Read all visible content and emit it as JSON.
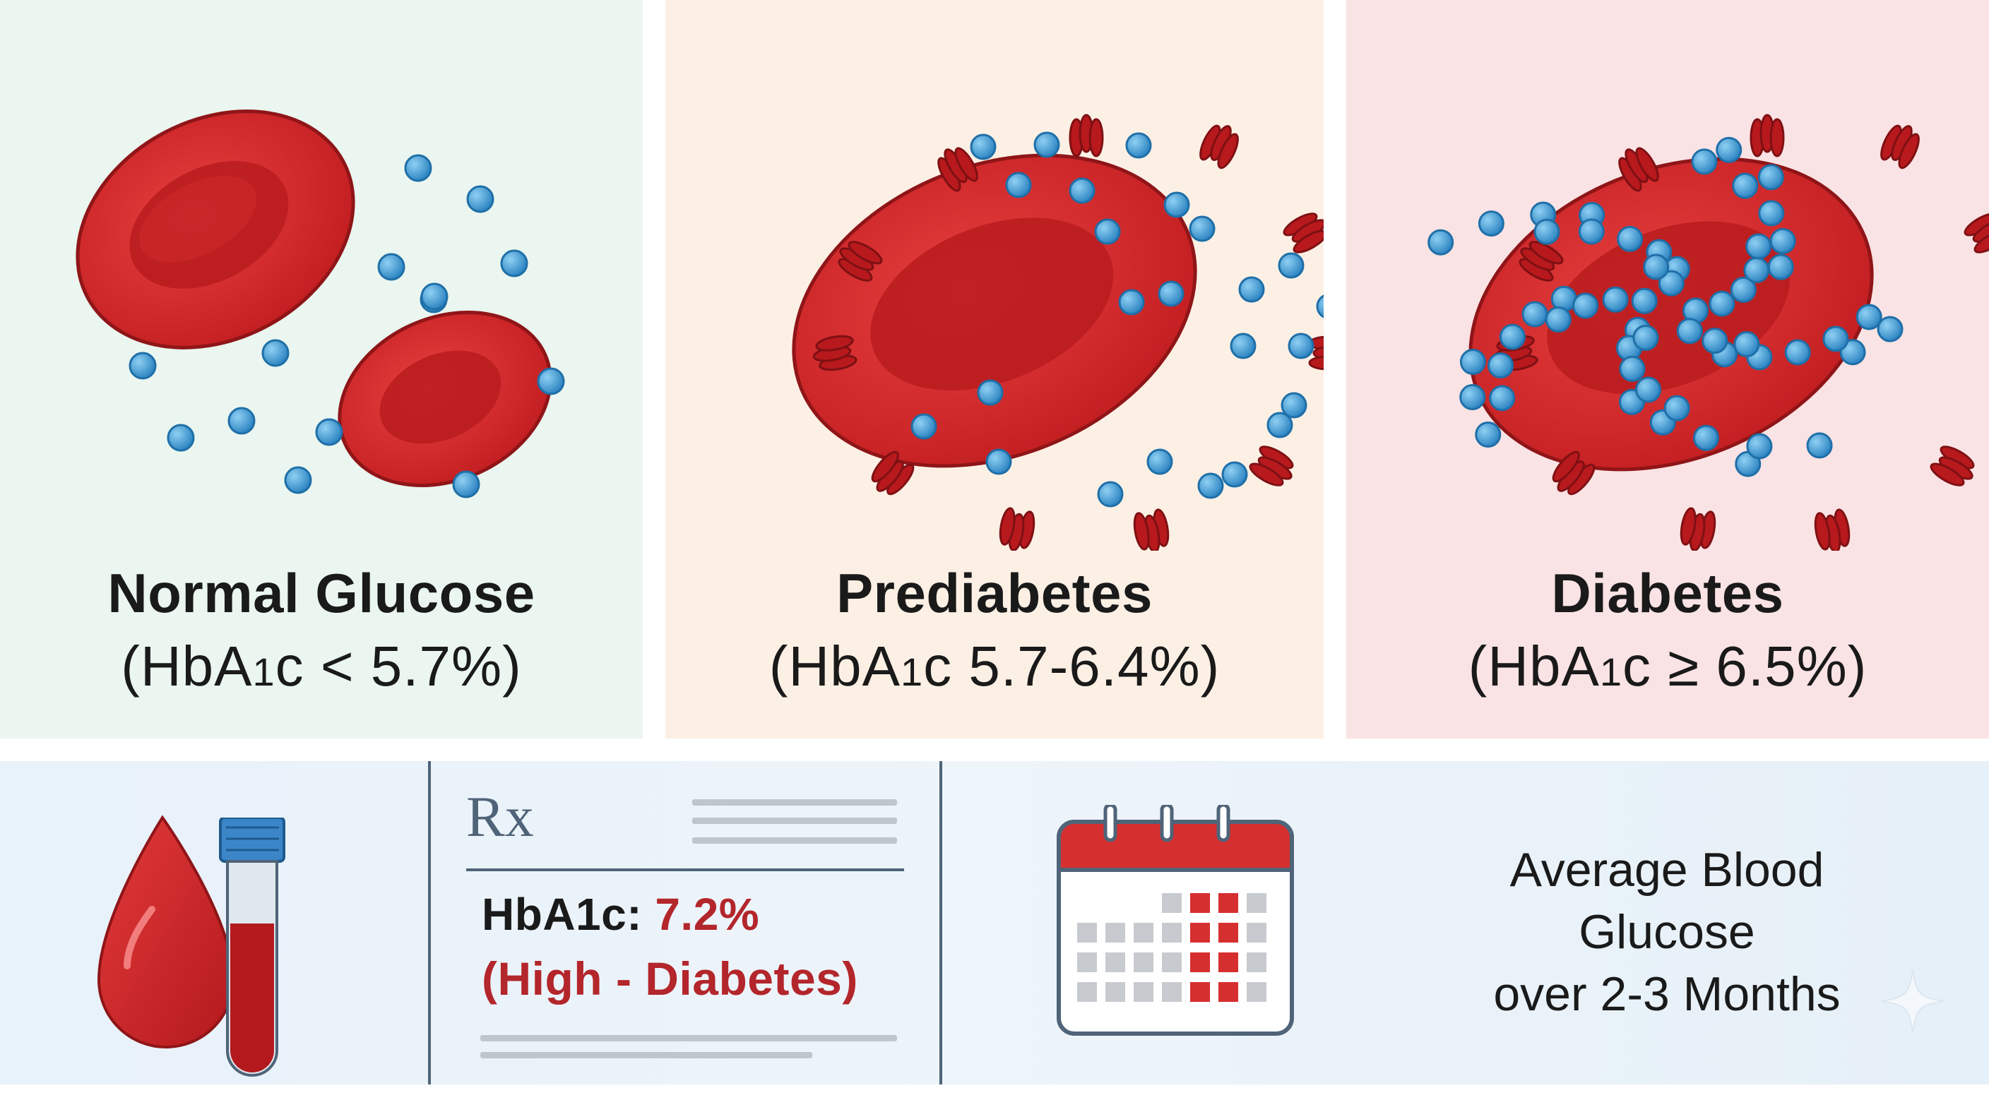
{
  "panels": [
    {
      "title": "Normal Glucose",
      "sub_pre": "(HbA",
      "sub_subscript": "1",
      "sub_post": "c < 5.7%)",
      "bg": "#eaf6ef"
    },
    {
      "title": "Prediabetes",
      "sub_pre": "(HbA",
      "sub_subscript": "1",
      "sub_post": "c 5.7-6.4%)",
      "bg": "#fcf0e5"
    },
    {
      "title": "Diabetes",
      "sub_pre": "(HbA",
      "sub_subscript": "1",
      "sub_post": "c ≥ 6.5%)",
      "bg": "#fae3e4"
    }
  ],
  "bottom": {
    "rx_symbol": "Rx",
    "hba_label": "HbA1c: ",
    "hba_value": "7.2%",
    "hba_status": "(High - Diabetes)",
    "avg_line1": "Average Blood",
    "avg_line2": "Glucose",
    "avg_line3": "over 2-3 Months"
  },
  "colors": {
    "cell_red": "#d62f2f",
    "glucose_blue": "#3b95cf",
    "alert_red": "#b3262b",
    "divider": "#4f6478"
  },
  "icons": [
    "blood-drop-icon",
    "test-tube-icon",
    "prescription-icon",
    "calendar-icon",
    "sparkle-icon"
  ]
}
